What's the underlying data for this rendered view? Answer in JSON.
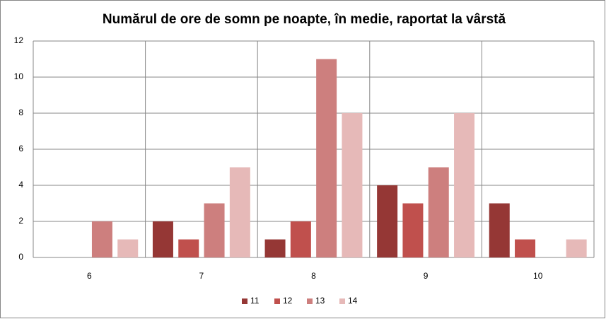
{
  "chart_data": {
    "type": "bar",
    "title": "Numărul de ore de somn pe noapte,  în medie, raportat la vârstă",
    "categories": [
      "6",
      "7",
      "8",
      "9",
      "10"
    ],
    "series": [
      {
        "name": "11",
        "color": "#953735",
        "values": [
          0,
          2,
          1,
          4,
          3
        ]
      },
      {
        "name": "12",
        "color": "#c0504d",
        "values": [
          0,
          1,
          2,
          3,
          1
        ]
      },
      {
        "name": "13",
        "color": "#cd7f7e",
        "values": [
          2,
          3,
          11,
          5,
          0
        ]
      },
      {
        "name": "14",
        "color": "#e6b9b8",
        "values": [
          1,
          5,
          8,
          8,
          1
        ]
      }
    ],
    "ylim": [
      0,
      12
    ],
    "yticks": [
      0,
      2,
      4,
      6,
      8,
      10,
      12
    ],
    "grid": true,
    "legend": "bottom"
  }
}
